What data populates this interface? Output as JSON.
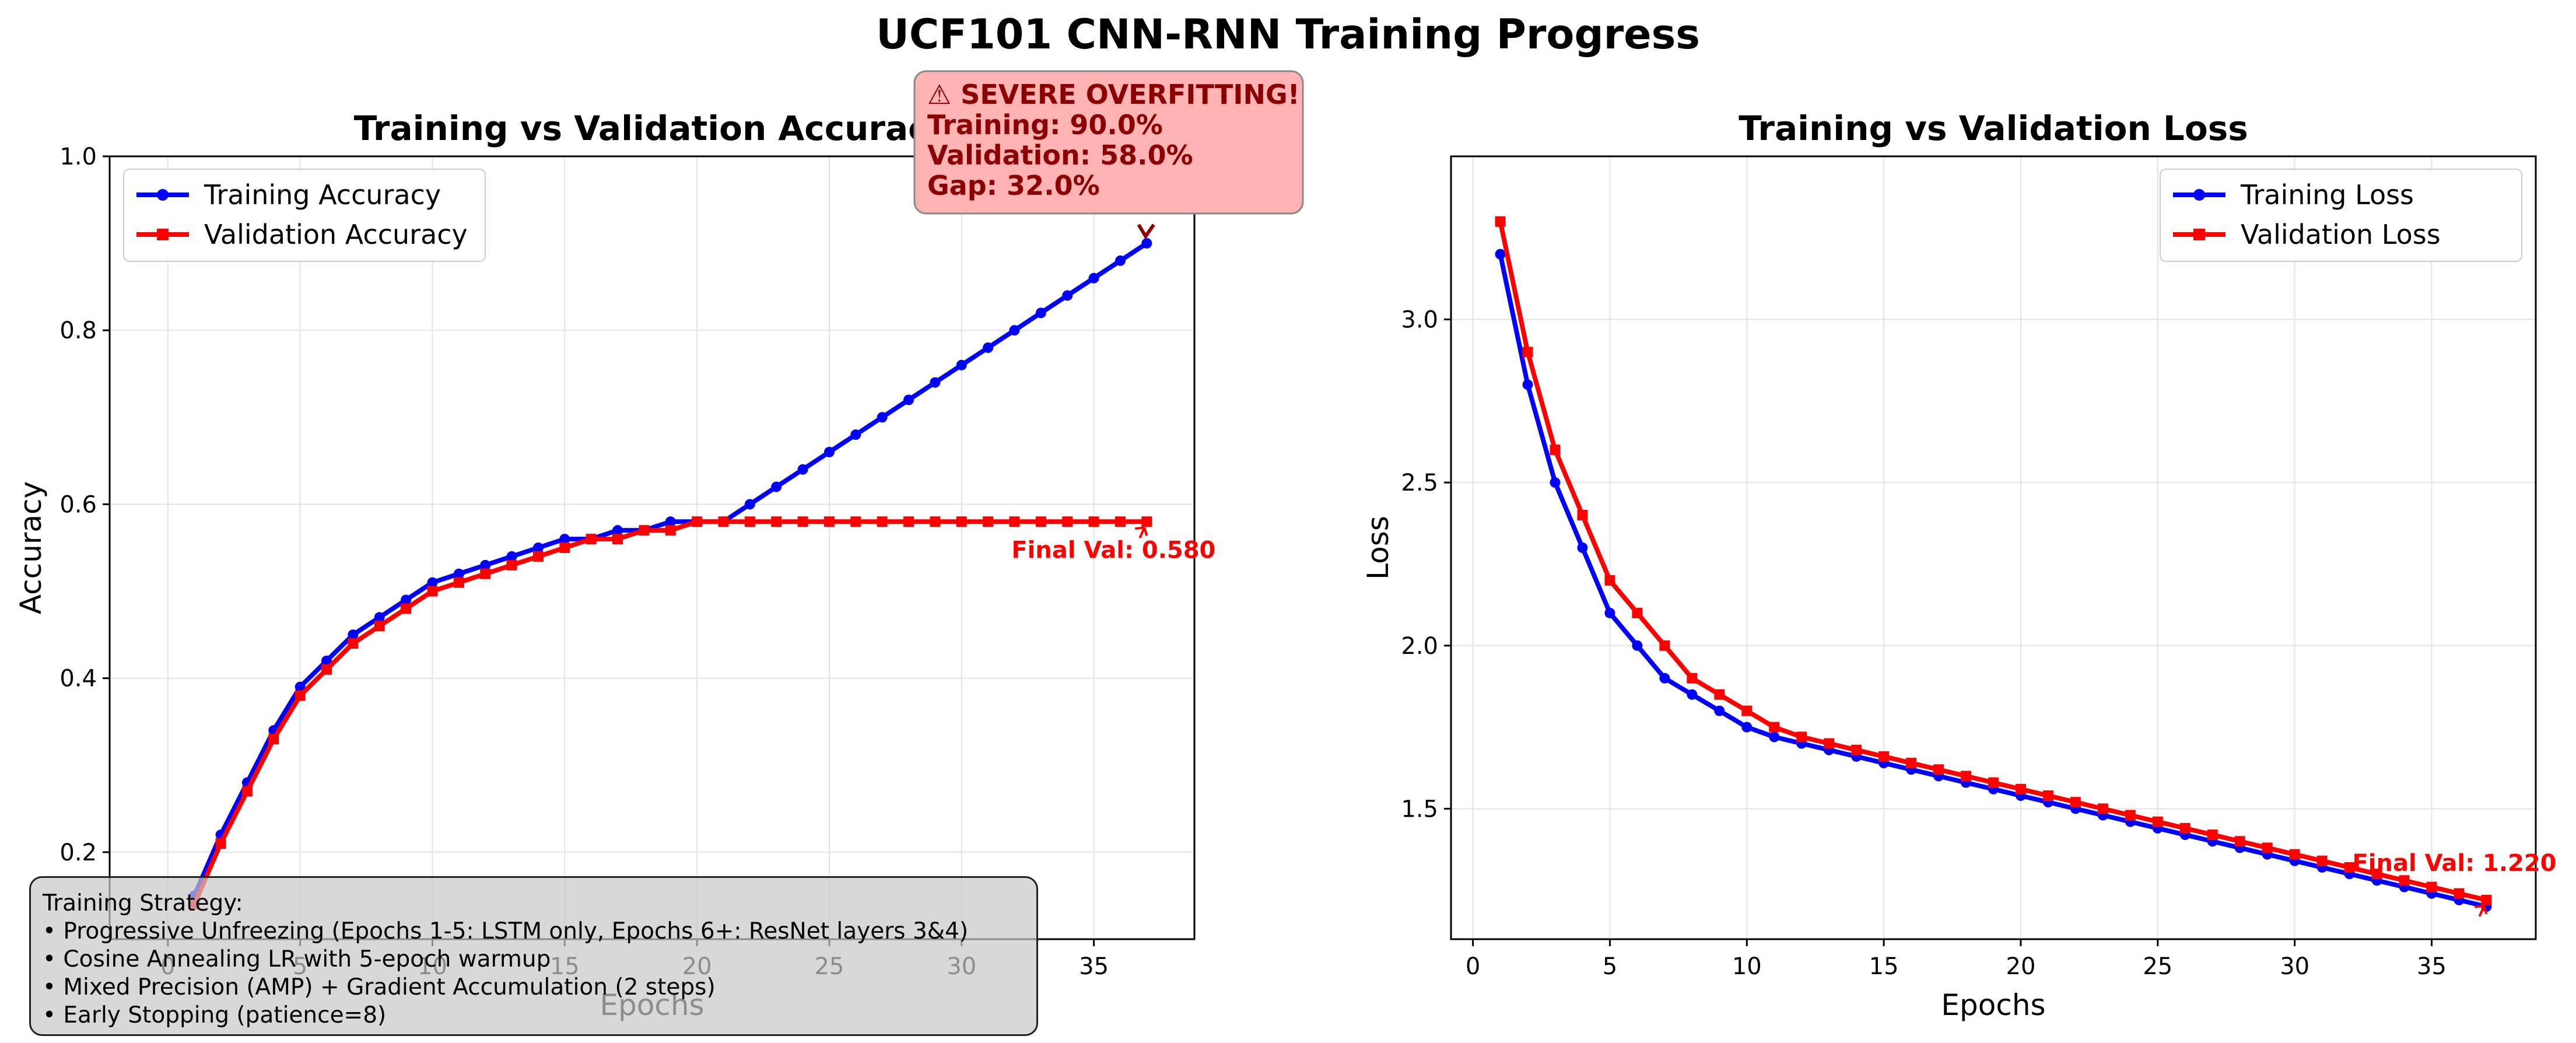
{
  "figure_title": "UCF101 CNN-RNN Training Progress",
  "colors": {
    "training": "#0000ff",
    "validation": "#ff0000",
    "annotation_box": "#ffb3b3",
    "annotation_text": "#8b0000",
    "strategy_box": "#d9d9d9"
  },
  "chart_data": [
    {
      "type": "line",
      "title": "Training vs Validation Accuracy",
      "xlabel": "Epochs",
      "ylabel": "Accuracy",
      "xlim": [
        -2.2,
        38.8
      ],
      "ylim": [
        0.1,
        1.0
      ],
      "xticks": [
        0,
        5,
        10,
        15,
        20,
        25,
        30,
        35
      ],
      "xtick_labels": [
        "0",
        "5",
        "10",
        "15",
        "20",
        "25",
        "30",
        "35"
      ],
      "yticks": [
        0.2,
        0.4,
        0.6,
        0.8,
        1.0
      ],
      "ytick_labels": [
        "0.2",
        "0.4",
        "0.6",
        "0.8",
        "1.0"
      ],
      "grid": true,
      "legend_position": "upper-left",
      "x": [
        1,
        2,
        3,
        4,
        5,
        6,
        7,
        8,
        9,
        10,
        11,
        12,
        13,
        14,
        15,
        16,
        17,
        18,
        19,
        20,
        21,
        22,
        23,
        24,
        25,
        26,
        27,
        28,
        29,
        30,
        31,
        32,
        33,
        34,
        35,
        36,
        37
      ],
      "series": [
        {
          "name": "Training Accuracy",
          "color": "#0000ff",
          "marker": "circle",
          "values": [
            0.15,
            0.22,
            0.28,
            0.34,
            0.39,
            0.42,
            0.45,
            0.47,
            0.49,
            0.51,
            0.52,
            0.53,
            0.54,
            0.55,
            0.56,
            0.56,
            0.57,
            0.57,
            0.58,
            0.58,
            0.58,
            0.6,
            0.62,
            0.64,
            0.66,
            0.68,
            0.7,
            0.72,
            0.74,
            0.76,
            0.78,
            0.8,
            0.82,
            0.84,
            0.86,
            0.88,
            0.9
          ]
        },
        {
          "name": "Validation Accuracy",
          "color": "#ff0000",
          "marker": "square",
          "values": [
            0.14,
            0.21,
            0.27,
            0.33,
            0.38,
            0.41,
            0.44,
            0.46,
            0.48,
            0.5,
            0.51,
            0.52,
            0.53,
            0.54,
            0.55,
            0.56,
            0.56,
            0.57,
            0.57,
            0.58,
            0.58,
            0.58,
            0.58,
            0.58,
            0.58,
            0.58,
            0.58,
            0.58,
            0.58,
            0.58,
            0.58,
            0.58,
            0.58,
            0.58,
            0.58,
            0.58,
            0.58
          ]
        }
      ],
      "annotations": [
        {
          "text": "Final Val: 0.580",
          "target_x": 37,
          "target_y": 0.58,
          "color": "#ff0000"
        },
        {
          "lines": [
            "⚠ SEVERE OVERFITTING!",
            "Training: 90.0%",
            "Validation: 58.0%",
            "Gap: 32.0%"
          ],
          "target_x": 37,
          "target_y": 0.9,
          "color": "#8b0000"
        }
      ]
    },
    {
      "type": "line",
      "title": "Training vs Validation Loss",
      "xlabel": "Epochs",
      "ylabel": "Loss",
      "xlim": [
        -0.8,
        38.8
      ],
      "ylim": [
        1.1,
        3.5
      ],
      "xticks": [
        0,
        5,
        10,
        15,
        20,
        25,
        30,
        35
      ],
      "xtick_labels": [
        "0",
        "5",
        "10",
        "15",
        "20",
        "25",
        "30",
        "35"
      ],
      "yticks": [
        1.5,
        2.0,
        2.5,
        3.0
      ],
      "ytick_labels": [
        "1.5",
        "2.0",
        "2.5",
        "3.0"
      ],
      "grid": true,
      "legend_position": "upper-right",
      "x": [
        1,
        2,
        3,
        4,
        5,
        6,
        7,
        8,
        9,
        10,
        11,
        12,
        13,
        14,
        15,
        16,
        17,
        18,
        19,
        20,
        21,
        22,
        23,
        24,
        25,
        26,
        27,
        28,
        29,
        30,
        31,
        32,
        33,
        34,
        35,
        36,
        37
      ],
      "series": [
        {
          "name": "Training Loss",
          "color": "#0000ff",
          "marker": "circle",
          "values": [
            3.2,
            2.8,
            2.5,
            2.3,
            2.1,
            2.0,
            1.9,
            1.85,
            1.8,
            1.75,
            1.72,
            1.7,
            1.68,
            1.66,
            1.64,
            1.62,
            1.6,
            1.58,
            1.56,
            1.54,
            1.52,
            1.5,
            1.48,
            1.46,
            1.44,
            1.42,
            1.4,
            1.38,
            1.36,
            1.34,
            1.32,
            1.3,
            1.28,
            1.26,
            1.24,
            1.22,
            1.2
          ]
        },
        {
          "name": "Validation Loss",
          "color": "#ff0000",
          "marker": "square",
          "values": [
            3.3,
            2.9,
            2.6,
            2.4,
            2.2,
            2.1,
            2.0,
            1.9,
            1.85,
            1.8,
            1.75,
            1.72,
            1.7,
            1.68,
            1.66,
            1.64,
            1.62,
            1.6,
            1.58,
            1.56,
            1.54,
            1.52,
            1.5,
            1.48,
            1.46,
            1.44,
            1.42,
            1.4,
            1.38,
            1.36,
            1.34,
            1.32,
            1.3,
            1.28,
            1.26,
            1.24,
            1.22
          ]
        }
      ],
      "annotations": [
        {
          "text": "Final Val: 1.220",
          "target_x": 37,
          "target_y": 1.22,
          "color": "#ff0000"
        }
      ]
    }
  ],
  "strategy": {
    "title": "Training Strategy:",
    "items": [
      "• Progressive Unfreezing (Epochs 1-5: LSTM only, Epochs 6+: ResNet layers 3&4)",
      "• Cosine Annealing LR with 5-epoch warmup",
      "• Mixed Precision (AMP) + Gradient Accumulation (2 steps)",
      "• Early Stopping (patience=8)"
    ]
  }
}
